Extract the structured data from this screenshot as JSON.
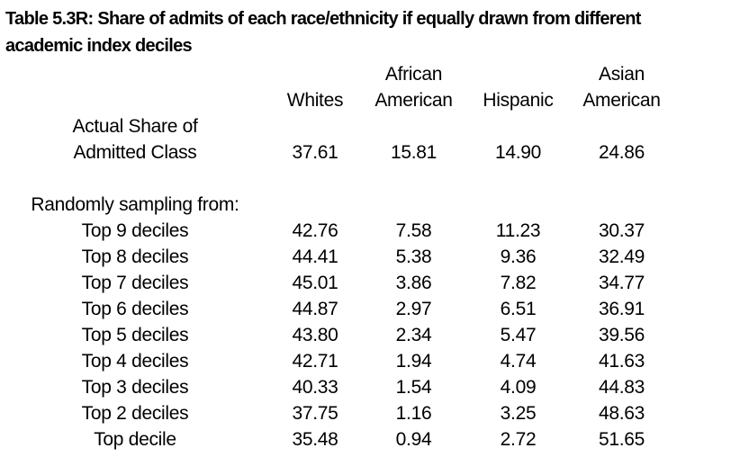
{
  "page": {
    "background": "#ffffff",
    "text_color": "#000000"
  },
  "title": {
    "text": "Table 5.3R: Share of admits of each race/ethnicity if equally drawn from different academic index deciles",
    "lines": [
      "Table 5.3R: Share of admits of each race/ethnicity if equally drawn from different",
      "academic index deciles"
    ]
  },
  "table": {
    "columns": [
      {
        "id": "whites",
        "label": "Whites",
        "header_lines": [
          "Whites"
        ]
      },
      {
        "id": "african-american",
        "label": "African American",
        "header_lines": [
          "African",
          "American"
        ]
      },
      {
        "id": "hispanic",
        "label": "Hispanic",
        "header_lines": [
          "Hispanic"
        ]
      },
      {
        "id": "asian-american",
        "label": "Asian American",
        "header_lines": [
          "Asian",
          "American"
        ]
      }
    ],
    "actual_share_row": {
      "label_lines": [
        "Actual Share of",
        "Admitted Class"
      ],
      "values": [
        "37.61",
        "15.81",
        "14.90",
        "24.86"
      ]
    },
    "section_label": "Randomly sampling from:",
    "rows": [
      {
        "label": "Top 9 deciles",
        "values": [
          "42.76",
          "7.58",
          "11.23",
          "30.37"
        ]
      },
      {
        "label": "Top 8 deciles",
        "values": [
          "44.41",
          "5.38",
          "9.36",
          "32.49"
        ]
      },
      {
        "label": "Top 7 deciles",
        "values": [
          "45.01",
          "3.86",
          "7.82",
          "34.77"
        ]
      },
      {
        "label": "Top 6 deciles",
        "values": [
          "44.87",
          "2.97",
          "6.51",
          "36.91"
        ]
      },
      {
        "label": "Top 5 deciles",
        "values": [
          "43.80",
          "2.34",
          "5.47",
          "39.56"
        ]
      },
      {
        "label": "Top 4 deciles",
        "values": [
          "42.71",
          "1.94",
          "4.74",
          "41.63"
        ]
      },
      {
        "label": "Top 3 deciles",
        "values": [
          "40.33",
          "1.54",
          "4.09",
          "44.83"
        ]
      },
      {
        "label": "Top 2 deciles",
        "values": [
          "37.75",
          "1.16",
          "3.25",
          "48.63"
        ]
      },
      {
        "label": "Top decile",
        "values": [
          "35.48",
          "0.94",
          "2.72",
          "51.65"
        ]
      }
    ]
  },
  "chart_data": {
    "type": "table",
    "title": "Table 5.3R: Share of admits of each race/ethnicity if equally drawn from different academic index deciles",
    "columns": [
      "Whites",
      "African American",
      "Hispanic",
      "Asian American"
    ],
    "rows": [
      {
        "label": "Actual Share of Admitted Class",
        "values": [
          37.61,
          15.81,
          14.9,
          24.86
        ]
      },
      {
        "label": "Top 9 deciles",
        "values": [
          42.76,
          7.58,
          11.23,
          30.37
        ]
      },
      {
        "label": "Top 8 deciles",
        "values": [
          44.41,
          5.38,
          9.36,
          32.49
        ]
      },
      {
        "label": "Top 7 deciles",
        "values": [
          45.01,
          3.86,
          7.82,
          34.77
        ]
      },
      {
        "label": "Top 6 deciles",
        "values": [
          44.87,
          2.97,
          6.51,
          36.91
        ]
      },
      {
        "label": "Top 5 deciles",
        "values": [
          43.8,
          2.34,
          5.47,
          39.56
        ]
      },
      {
        "label": "Top 4 deciles",
        "values": [
          42.71,
          1.94,
          4.74,
          41.63
        ]
      },
      {
        "label": "Top 3 deciles",
        "values": [
          40.33,
          1.54,
          4.09,
          44.83
        ]
      },
      {
        "label": "Top 2 deciles",
        "values": [
          37.75,
          1.16,
          3.25,
          48.63
        ]
      },
      {
        "label": "Top decile",
        "values": [
          35.48,
          0.94,
          2.72,
          51.65
        ]
      }
    ]
  }
}
